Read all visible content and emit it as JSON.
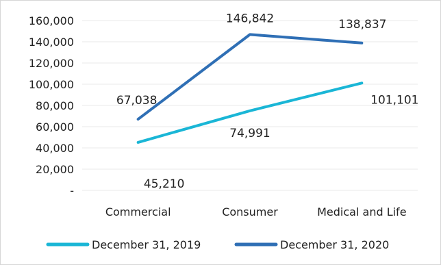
{
  "chart_data": {
    "type": "line",
    "categories": [
      "Commercial",
      "Consumer",
      "Medical and Life"
    ],
    "series": [
      {
        "name": "December 31, 2019",
        "values": [
          45210,
          74991,
          101101
        ],
        "labels": [
          "45,210",
          "74,991",
          "101,101"
        ],
        "color": "#1ab6d6"
      },
      {
        "name": "December 31, 2020",
        "values": [
          67038,
          146842,
          138837
        ],
        "labels": [
          "67,038",
          "146,842",
          "138,837"
        ],
        "color": "#2f6fb5"
      }
    ],
    "y_ticks": [
      {
        "value": 0,
        "label": "-"
      },
      {
        "value": 20000,
        "label": "20,000"
      },
      {
        "value": 40000,
        "label": "40,000"
      },
      {
        "value": 60000,
        "label": "60,000"
      },
      {
        "value": 80000,
        "label": "80,000"
      },
      {
        "value": 100000,
        "label": "100,000"
      },
      {
        "value": 120000,
        "label": "120,000"
      },
      {
        "value": 140000,
        "label": "140,000"
      },
      {
        "value": 160000,
        "label": "160,000"
      }
    ],
    "ylim": [
      0,
      160000
    ],
    "grid": true,
    "legend_position": "bottom"
  }
}
